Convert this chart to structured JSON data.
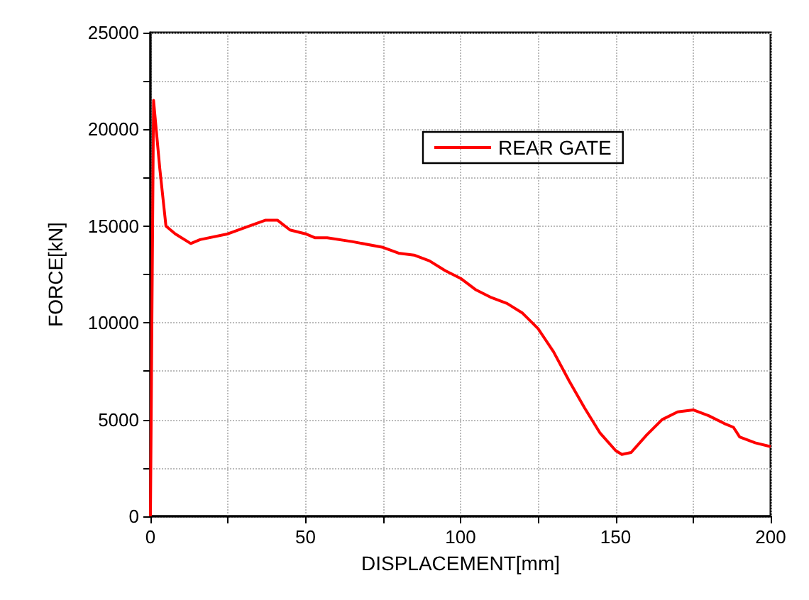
{
  "chart_data": {
    "type": "line",
    "xlabel": "DISPLACEMENT[mm]",
    "ylabel": "FORCE[kN]",
    "xlim": [
      0,
      200
    ],
    "xticks": [
      0,
      {
        "value": 25,
        "label": null
      },
      50,
      {
        "value": 75,
        "label": null
      },
      100,
      {
        "value": 125,
        "label": null
      },
      150,
      {
        "value": 175,
        "label": null
      },
      200
    ],
    "ylim": [
      0,
      25000
    ],
    "yticks": [
      0,
      {
        "value": 2500,
        "label": null
      },
      5000,
      {
        "value": 7500,
        "label": null
      },
      10000,
      {
        "value": 12500,
        "label": null
      },
      15000,
      {
        "value": 17500,
        "label": null
      },
      20000,
      {
        "value": 22500,
        "label": null
      },
      25000
    ],
    "grid": true,
    "legend": "top",
    "marker": "none",
    "line_style": "solid",
    "series": [
      {
        "name": "REAR GATE",
        "color": "#ff0000",
        "x": [
          0,
          1,
          3,
          5,
          8,
          13,
          16,
          25,
          30,
          37,
          41,
          45,
          50,
          53,
          57,
          65,
          75,
          80,
          85,
          90,
          95,
          100,
          105,
          110,
          115,
          120,
          125,
          130,
          135,
          140,
          145,
          150,
          152,
          155,
          160,
          165,
          170,
          175,
          180,
          185,
          188,
          190,
          195,
          200
        ],
        "values": [
          0,
          21500,
          18000,
          15000,
          14600,
          14100,
          14300,
          14600,
          14900,
          15300,
          15300,
          14800,
          14600,
          14400,
          14400,
          14200,
          13900,
          13600,
          13500,
          13200,
          12700,
          12300,
          11700,
          11300,
          11000,
          10500,
          9700,
          8500,
          7000,
          5600,
          4300,
          3400,
          3200,
          3300,
          4200,
          5000,
          5400,
          5500,
          5200,
          4800,
          4600,
          4100,
          3800,
          3600
        ]
      }
    ]
  }
}
